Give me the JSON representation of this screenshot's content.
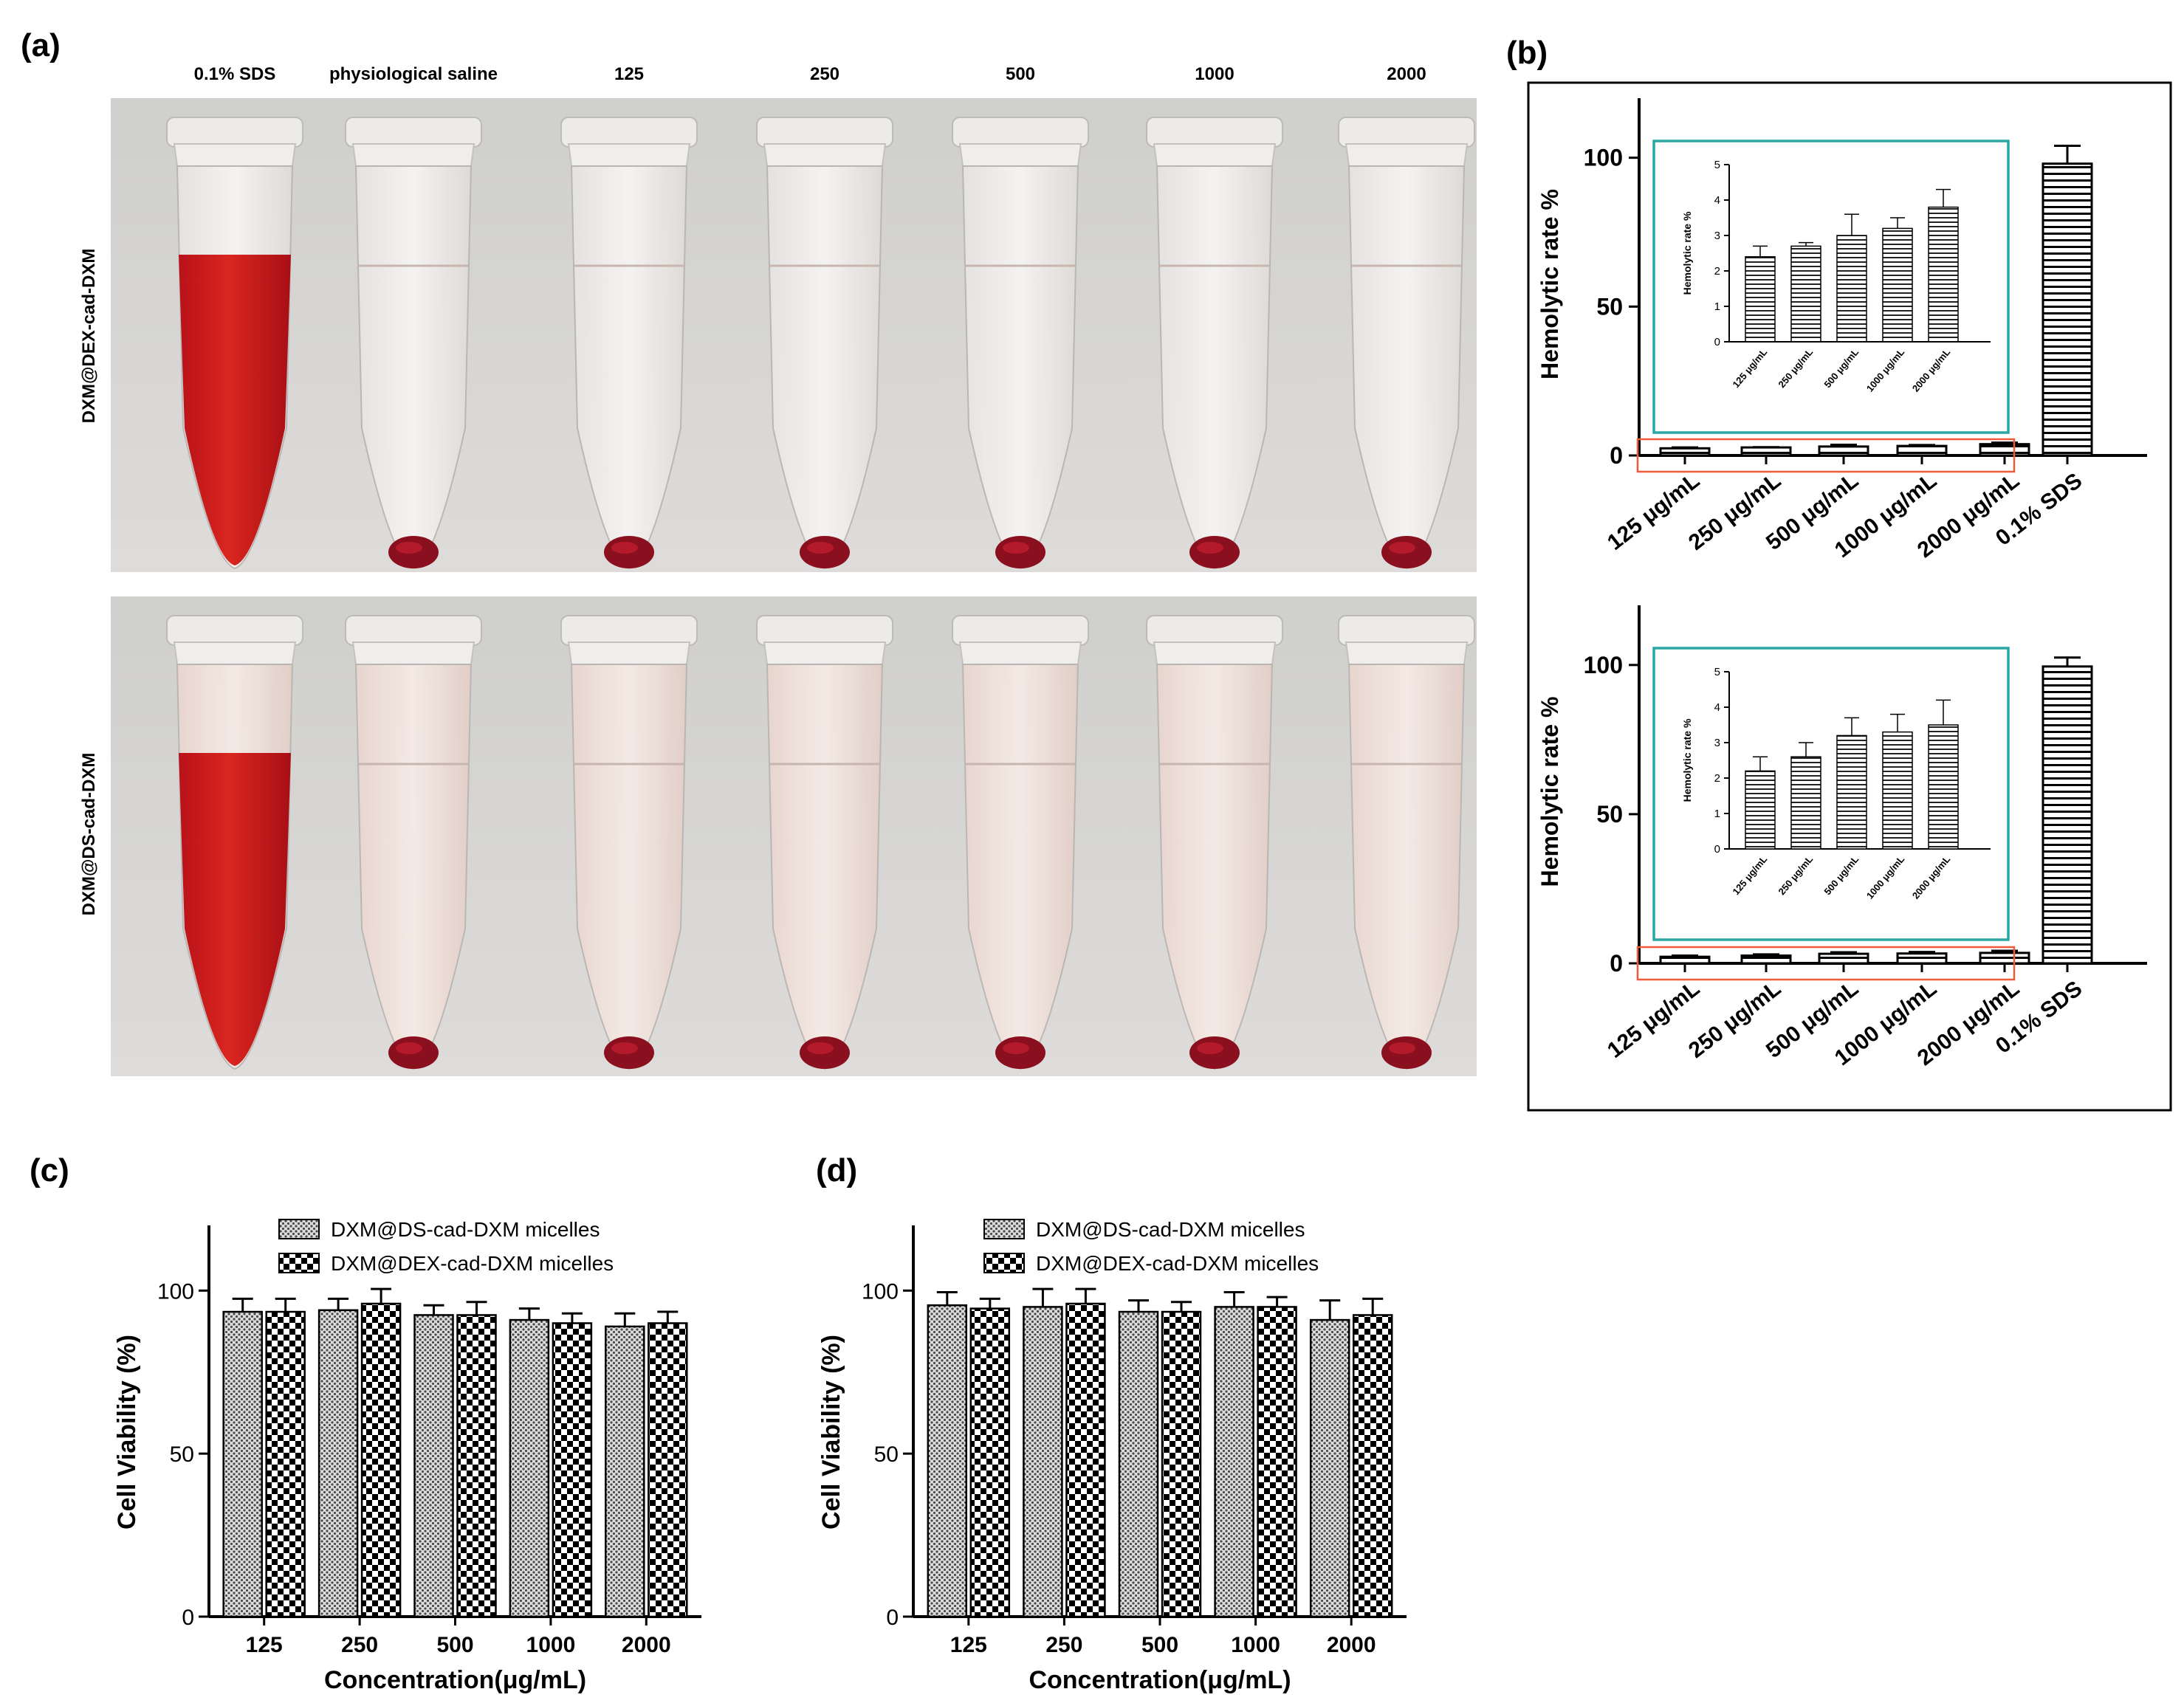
{
  "colors": {
    "inset_border": "#2aa7a5",
    "highlight_box": "#ef5b3a",
    "blood_red": "#c9161c",
    "pellet_red": "#8a1020",
    "axis": "#000000"
  },
  "panel_a": {
    "label": "(a)",
    "columns": [
      "0.1% SDS",
      "physiological saline",
      "125",
      "250",
      "500",
      "1000",
      "2000"
    ],
    "row_labels": [
      "DXM@DEX-cad-DXM",
      "DXM@DS-cad-DXM"
    ]
  },
  "panel_b_label": "(b)",
  "panel_c_label": "(c)",
  "panel_d_label": "(d)",
  "chart_data": [
    {
      "id": "b_top",
      "type": "bar",
      "ylabel": "Hemolytic rate %",
      "ylim": [
        0,
        120
      ],
      "yticks": [
        "0",
        "50",
        "100"
      ],
      "categories": [
        "125 μg/mL",
        "250 μg/mL",
        "500 μg/mL",
        "1000 μg/mL",
        "2000 μg/mL",
        "0.1% SDS"
      ],
      "values": [
        2.4,
        2.7,
        3.0,
        3.2,
        3.8,
        98
      ],
      "errors": [
        0.3,
        0.1,
        0.6,
        0.3,
        0.5,
        6
      ],
      "inset": {
        "type": "bar",
        "ylabel": "Hemolytic rate %",
        "ylim": [
          0,
          5
        ],
        "yticks": [
          "0",
          "1",
          "2",
          "3",
          "4",
          "5"
        ],
        "categories": [
          "125 μg/mL",
          "250 μg/mL",
          "500 μg/mL",
          "1000 μg/mL",
          "2000 μg/mL"
        ],
        "values": [
          2.4,
          2.7,
          3.0,
          3.2,
          3.8
        ],
        "errors": [
          0.3,
          0.1,
          0.6,
          0.3,
          0.5
        ]
      }
    },
    {
      "id": "b_bottom",
      "type": "bar",
      "ylabel": "Hemolytic rate %",
      "ylim": [
        0,
        120
      ],
      "yticks": [
        "0",
        "50",
        "100"
      ],
      "categories": [
        "125 μg/mL",
        "250 μg/mL",
        "500 μg/mL",
        "1000 μg/mL",
        "2000 μg/mL",
        "0.1% SDS"
      ],
      "values": [
        2.2,
        2.6,
        3.2,
        3.3,
        3.5,
        99.5
      ],
      "errors": [
        0.4,
        0.4,
        0.5,
        0.5,
        0.7,
        3
      ],
      "inset": {
        "type": "bar",
        "ylabel": "Hemolytic rate %",
        "ylim": [
          0,
          5
        ],
        "yticks": [
          "0",
          "1",
          "2",
          "3",
          "4",
          "5"
        ],
        "categories": [
          "125 μg/mL",
          "250 μg/mL",
          "500 μg/mL",
          "1000 μg/mL",
          "2000 μg/mL"
        ],
        "values": [
          2.2,
          2.6,
          3.2,
          3.3,
          3.5
        ],
        "errors": [
          0.4,
          0.4,
          0.5,
          0.5,
          0.7
        ]
      }
    },
    {
      "id": "c",
      "type": "bar",
      "xlabel": "Concentration(μg/mL)",
      "ylabel": "Cell Viability (%)",
      "ylim": [
        0,
        120
      ],
      "yticks": [
        "0",
        "50",
        "100"
      ],
      "categories": [
        "125",
        "250",
        "500",
        "1000",
        "2000"
      ],
      "series": [
        {
          "name": "DXM@DS-cad-DXM micelles",
          "values": [
            93.5,
            94,
            92.5,
            91,
            89
          ],
          "errors": [
            4,
            3.5,
            3,
            3.5,
            4
          ]
        },
        {
          "name": "DXM@DEX-cad-DXM micelles",
          "values": [
            93.5,
            96,
            92.5,
            90,
            90
          ],
          "errors": [
            4,
            4.5,
            4,
            3,
            3.5
          ]
        }
      ]
    },
    {
      "id": "d",
      "type": "bar",
      "xlabel": "Concentration(μg/mL)",
      "ylabel": "Cell Viability (%)",
      "ylim": [
        0,
        120
      ],
      "yticks": [
        "0",
        "50",
        "100"
      ],
      "categories": [
        "125",
        "250",
        "500",
        "1000",
        "2000"
      ],
      "series": [
        {
          "name": "DXM@DS-cad-DXM micelles",
          "values": [
            95.5,
            95,
            93.5,
            95,
            91
          ],
          "errors": [
            4,
            5.5,
            3.5,
            4.5,
            6
          ]
        },
        {
          "name": "DXM@DEX-cad-DXM micelles",
          "values": [
            94.5,
            96,
            93.5,
            95,
            92.5
          ],
          "errors": [
            3,
            4.5,
            3,
            3,
            5
          ]
        }
      ]
    }
  ]
}
